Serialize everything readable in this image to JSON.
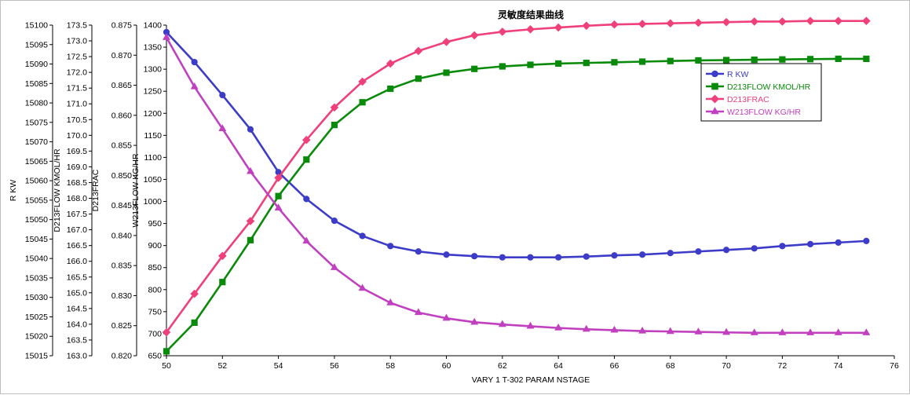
{
  "chart_data": {
    "type": "line",
    "title": "灵敏度结果曲线",
    "xlabel": "VARY   1 T-302 PARAM NSTAGE",
    "xlim": [
      50,
      76
    ],
    "xticks": [
      50,
      52,
      54,
      56,
      58,
      60,
      62,
      64,
      66,
      68,
      70,
      72,
      74,
      76
    ],
    "grid": false,
    "legend_position": "top-right",
    "x": [
      50,
      51,
      52,
      53,
      54,
      55,
      56,
      57,
      58,
      59,
      60,
      61,
      62,
      63,
      64,
      65,
      66,
      67,
      68,
      69,
      70,
      71,
      72,
      73,
      74,
      75
    ],
    "y_axes": [
      {
        "id": "rkw",
        "label": "R KW",
        "ylim": [
          15015,
          15100
        ],
        "ticks": [
          "15015",
          "15020",
          "15025",
          "15030",
          "15035",
          "15040",
          "15045",
          "15050",
          "15055",
          "15060",
          "15065",
          "15070",
          "15075",
          "15080",
          "15085",
          "15090",
          "15095",
          "15100"
        ]
      },
      {
        "id": "d213flow",
        "label": "D213FLOW KMOL/HR",
        "ylim": [
          163.0,
          173.5
        ],
        "ticks": [
          "163.0",
          "163.5",
          "164.0",
          "164.5",
          "165.0",
          "165.5",
          "166.0",
          "166.5",
          "167.0",
          "167.5",
          "168.0",
          "168.5",
          "169.0",
          "169.5",
          "170.0",
          "170.5",
          "171.0",
          "171.5",
          "172.0",
          "172.5",
          "173.0",
          "173.5"
        ]
      },
      {
        "id": "d213frac",
        "label": "D213FRAC",
        "ylim": [
          0.82,
          0.875
        ],
        "ticks": [
          "0.820",
          "0.825",
          "0.830",
          "0.835",
          "0.840",
          "0.845",
          "0.850",
          "0.855",
          "0.860",
          "0.865",
          "0.870",
          "0.875"
        ]
      },
      {
        "id": "w213flow",
        "label": "W213FLOW KG/HR",
        "ylim": [
          650,
          1400
        ],
        "ticks": [
          "650",
          "700",
          "750",
          "800",
          "850",
          "900",
          "950",
          "1000",
          "1050",
          "1100",
          "1150",
          "1200",
          "1250",
          "1300",
          "1350",
          "1400"
        ]
      }
    ],
    "series": [
      {
        "name": "R KW",
        "axis": 0,
        "color": "#3c3cc8",
        "marker": "circle",
        "values": [
          15098.2,
          15090.5,
          15082.0,
          15073.2,
          15062.2,
          15055.3,
          15049.7,
          15045.8,
          15043.2,
          15041.8,
          15041.0,
          15040.6,
          15040.3,
          15040.3,
          15040.3,
          15040.5,
          15040.8,
          15041.0,
          15041.4,
          15041.8,
          15042.2,
          15042.6,
          15043.2,
          15043.7,
          15044.1,
          15044.5
        ]
      },
      {
        "name": "D213FLOW KMOL/HR",
        "axis": 1,
        "color": "#0a8a0a",
        "marker": "square",
        "values": [
          163.14,
          164.05,
          165.34,
          166.67,
          168.07,
          169.23,
          170.33,
          171.05,
          171.48,
          171.8,
          171.99,
          172.11,
          172.19,
          172.24,
          172.28,
          172.3,
          172.32,
          172.34,
          172.36,
          172.38,
          172.39,
          172.4,
          172.41,
          172.42,
          172.43,
          172.43
        ]
      },
      {
        "name": "D213FRAC",
        "axis": 2,
        "color": "#f0407a",
        "marker": "diamond",
        "values": [
          0.8239,
          0.8303,
          0.8366,
          0.8424,
          0.8496,
          0.8559,
          0.8613,
          0.8656,
          0.8686,
          0.8707,
          0.8722,
          0.8733,
          0.8739,
          0.8743,
          0.8746,
          0.8749,
          0.8751,
          0.8752,
          0.8753,
          0.8754,
          0.8755,
          0.8756,
          0.8756,
          0.8757,
          0.8757,
          0.8757
        ]
      },
      {
        "name": "W213FLOW KG/HR",
        "axis": 3,
        "color": "#c040c0",
        "marker": "triangle",
        "values": [
          1372,
          1260,
          1165,
          1068,
          985,
          910,
          850,
          803,
          770,
          748,
          735,
          726,
          721,
          717,
          713,
          710,
          708,
          706,
          705,
          704,
          703,
          702,
          702,
          702,
          702,
          702
        ]
      }
    ]
  }
}
